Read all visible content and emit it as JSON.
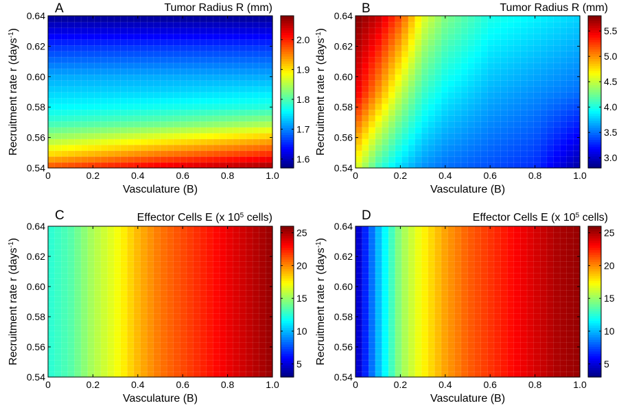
{
  "chart_data": [
    {
      "panel_label": "A",
      "type": "heatmap",
      "title": "Tumor Radius R (mm)",
      "title_super": "",
      "title_suffix": "",
      "xlabel": "Vasculature (B)",
      "ylabel": "Recruitment rate r (days",
      "ylabel_super": "-1",
      "ylabel_suffix": ")",
      "xlim": [
        0,
        1
      ],
      "ylim": [
        0.54,
        0.64
      ],
      "xticks": [
        "0",
        "0.2",
        "0.4",
        "0.6",
        "0.8",
        "1.0"
      ],
      "yticks": [
        "0.54",
        "0.56",
        "0.58",
        "0.60",
        "0.62",
        "0.64"
      ],
      "colorbar": {
        "range": [
          1.57,
          2.08
        ],
        "ticks": [
          "1.6",
          "1.7",
          "1.8",
          "1.9",
          "2.0"
        ],
        "colormap": "jet"
      },
      "z_samples": {
        "x": [
          0,
          0.5,
          1.0
        ],
        "y": [
          0.54,
          0.55,
          0.56,
          0.57,
          0.58,
          0.59,
          0.6,
          0.62,
          0.64
        ],
        "z": [
          [
            1.98,
            2.03,
            2.07
          ],
          [
            1.9,
            1.95,
            1.99
          ],
          [
            1.84,
            1.88,
            1.92
          ],
          [
            1.79,
            1.81,
            1.84
          ],
          [
            1.76,
            1.77,
            1.78
          ],
          [
            1.74,
            1.74,
            1.75
          ],
          [
            1.72,
            1.72,
            1.72
          ],
          [
            1.66,
            1.66,
            1.66
          ],
          [
            1.58,
            1.58,
            1.58
          ]
        ]
      }
    },
    {
      "panel_label": "B",
      "type": "heatmap",
      "title": "Tumor Radius R (mm)",
      "title_super": "",
      "title_suffix": "",
      "xlabel": "Vasculature (B)",
      "ylabel": "Recruitment rate r (days",
      "ylabel_super": "-1",
      "ylabel_suffix": ")",
      "xlim": [
        0,
        1
      ],
      "ylim": [
        0.54,
        0.64
      ],
      "xticks": [
        "0",
        "0.2",
        "0.4",
        "0.6",
        "0.8",
        "1.0"
      ],
      "yticks": [
        "0.54",
        "0.56",
        "0.58",
        "0.60",
        "0.62",
        "0.64"
      ],
      "colorbar": {
        "range": [
          2.8,
          5.8
        ],
        "ticks": [
          "3.0",
          "3.5",
          "4.0",
          "4.5",
          "5.0",
          "5.5"
        ],
        "colormap": "jet"
      },
      "z_samples": {
        "x": [
          0,
          0.1,
          0.2,
          0.3,
          0.4,
          0.6,
          0.8,
          1.0
        ],
        "y": [
          0.54,
          0.59,
          0.64
        ],
        "z": [
          [
            4.6,
            4.1,
            3.8,
            3.6,
            3.5,
            3.4,
            3.3,
            2.9
          ],
          [
            5.5,
            5.0,
            4.5,
            4.1,
            3.9,
            3.7,
            3.6,
            3.5
          ],
          [
            5.8,
            5.6,
            5.2,
            4.6,
            4.3,
            4.0,
            3.9,
            3.8
          ]
        ]
      }
    },
    {
      "panel_label": "C",
      "type": "heatmap",
      "title": "Effector Cells E (x 10",
      "title_super": "5",
      "title_suffix": " cells)",
      "xlabel": "Vasculature (B)",
      "ylabel": "Recruitment rate r (days",
      "ylabel_super": "-1",
      "ylabel_suffix": ")",
      "xlim": [
        0,
        1
      ],
      "ylim": [
        0.54,
        0.64
      ],
      "xticks": [
        "0",
        "0.2",
        "0.4",
        "0.6",
        "0.8",
        "1.0"
      ],
      "yticks": [
        "0.54",
        "0.56",
        "0.58",
        "0.60",
        "0.62",
        "0.64"
      ],
      "colorbar": {
        "range": [
          3,
          26
        ],
        "ticks": [
          "5",
          "10",
          "15",
          "20",
          "25"
        ],
        "colormap": "jet"
      },
      "z_samples": {
        "x": [
          0,
          0.1,
          0.2,
          0.3,
          0.4,
          0.5,
          0.6,
          0.7,
          0.8,
          0.9,
          1.0
        ],
        "y": [
          0.54,
          0.64
        ],
        "z": [
          [
            12.5,
            13.5,
            15.5,
            17.0,
            19.0,
            20.5,
            21.5,
            22.5,
            23.5,
            24.5,
            25.5
          ],
          [
            12.5,
            13.5,
            15.5,
            17.0,
            19.0,
            20.5,
            21.5,
            22.5,
            23.5,
            24.5,
            25.5
          ]
        ]
      }
    },
    {
      "panel_label": "D",
      "type": "heatmap",
      "title": "Effector Cells E (x 10",
      "title_super": "5",
      "title_suffix": " cells)",
      "xlabel": "Vasculature (B)",
      "ylabel": "Recruitment rate r (days",
      "ylabel_super": "-1",
      "ylabel_suffix": ")",
      "xlim": [
        0,
        1
      ],
      "ylim": [
        0.54,
        0.64
      ],
      "xticks": [
        "0",
        "0.2",
        "0.4",
        "0.6",
        "0.8",
        "1.0"
      ],
      "yticks": [
        "0.54",
        "0.56",
        "0.58",
        "0.60",
        "0.62",
        "0.64"
      ],
      "colorbar": {
        "range": [
          3,
          26
        ],
        "ticks": [
          "5",
          "10",
          "15",
          "20",
          "25"
        ],
        "colormap": "jet"
      },
      "z_samples": {
        "x": [
          0,
          0.05,
          0.1,
          0.2,
          0.3,
          0.4,
          0.5,
          0.6,
          0.7,
          0.8,
          0.9,
          1.0
        ],
        "y": [
          0.54,
          0.64
        ],
        "z": [
          [
            4,
            7,
            10,
            15,
            17.5,
            19.5,
            21,
            22,
            23,
            24,
            25,
            25.5
          ],
          [
            4,
            7,
            10,
            15,
            17.5,
            19.5,
            21,
            22,
            23,
            24,
            25,
            25.5
          ]
        ]
      }
    }
  ]
}
